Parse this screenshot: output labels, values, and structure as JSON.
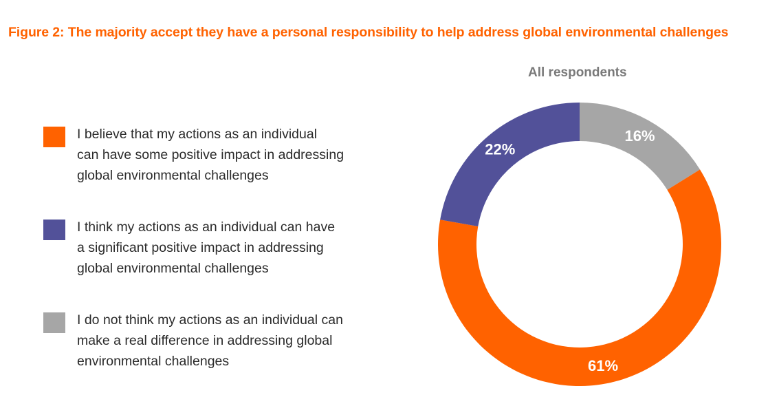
{
  "figure": {
    "title": "Figure 2: The majority accept they have a personal responsibility to help address global environmental challenges"
  },
  "chart_data": {
    "type": "pie",
    "subtitle": "All respondents",
    "start_angle_deg": 0,
    "direction": "clockwise",
    "series": [
      {
        "label": "I do not think my actions as an individual can\nmake a real difference in addressing global\nenvironmental challenges",
        "value": 16,
        "display": "16%",
        "color": "#a6a6a6"
      },
      {
        "label": "I believe that my actions as an individual\ncan have some positive impact in addressing\nglobal environmental challenges",
        "value": 61,
        "display": "61%",
        "color": "#ff6200"
      },
      {
        "label": "I think my actions as an individual can have\na significant positive impact in addressing\nglobal environmental challenges",
        "value": 22,
        "display": "22%",
        "color": "#525199"
      }
    ],
    "legend_order": [
      1,
      2,
      0
    ],
    "legend_placement": "left"
  }
}
